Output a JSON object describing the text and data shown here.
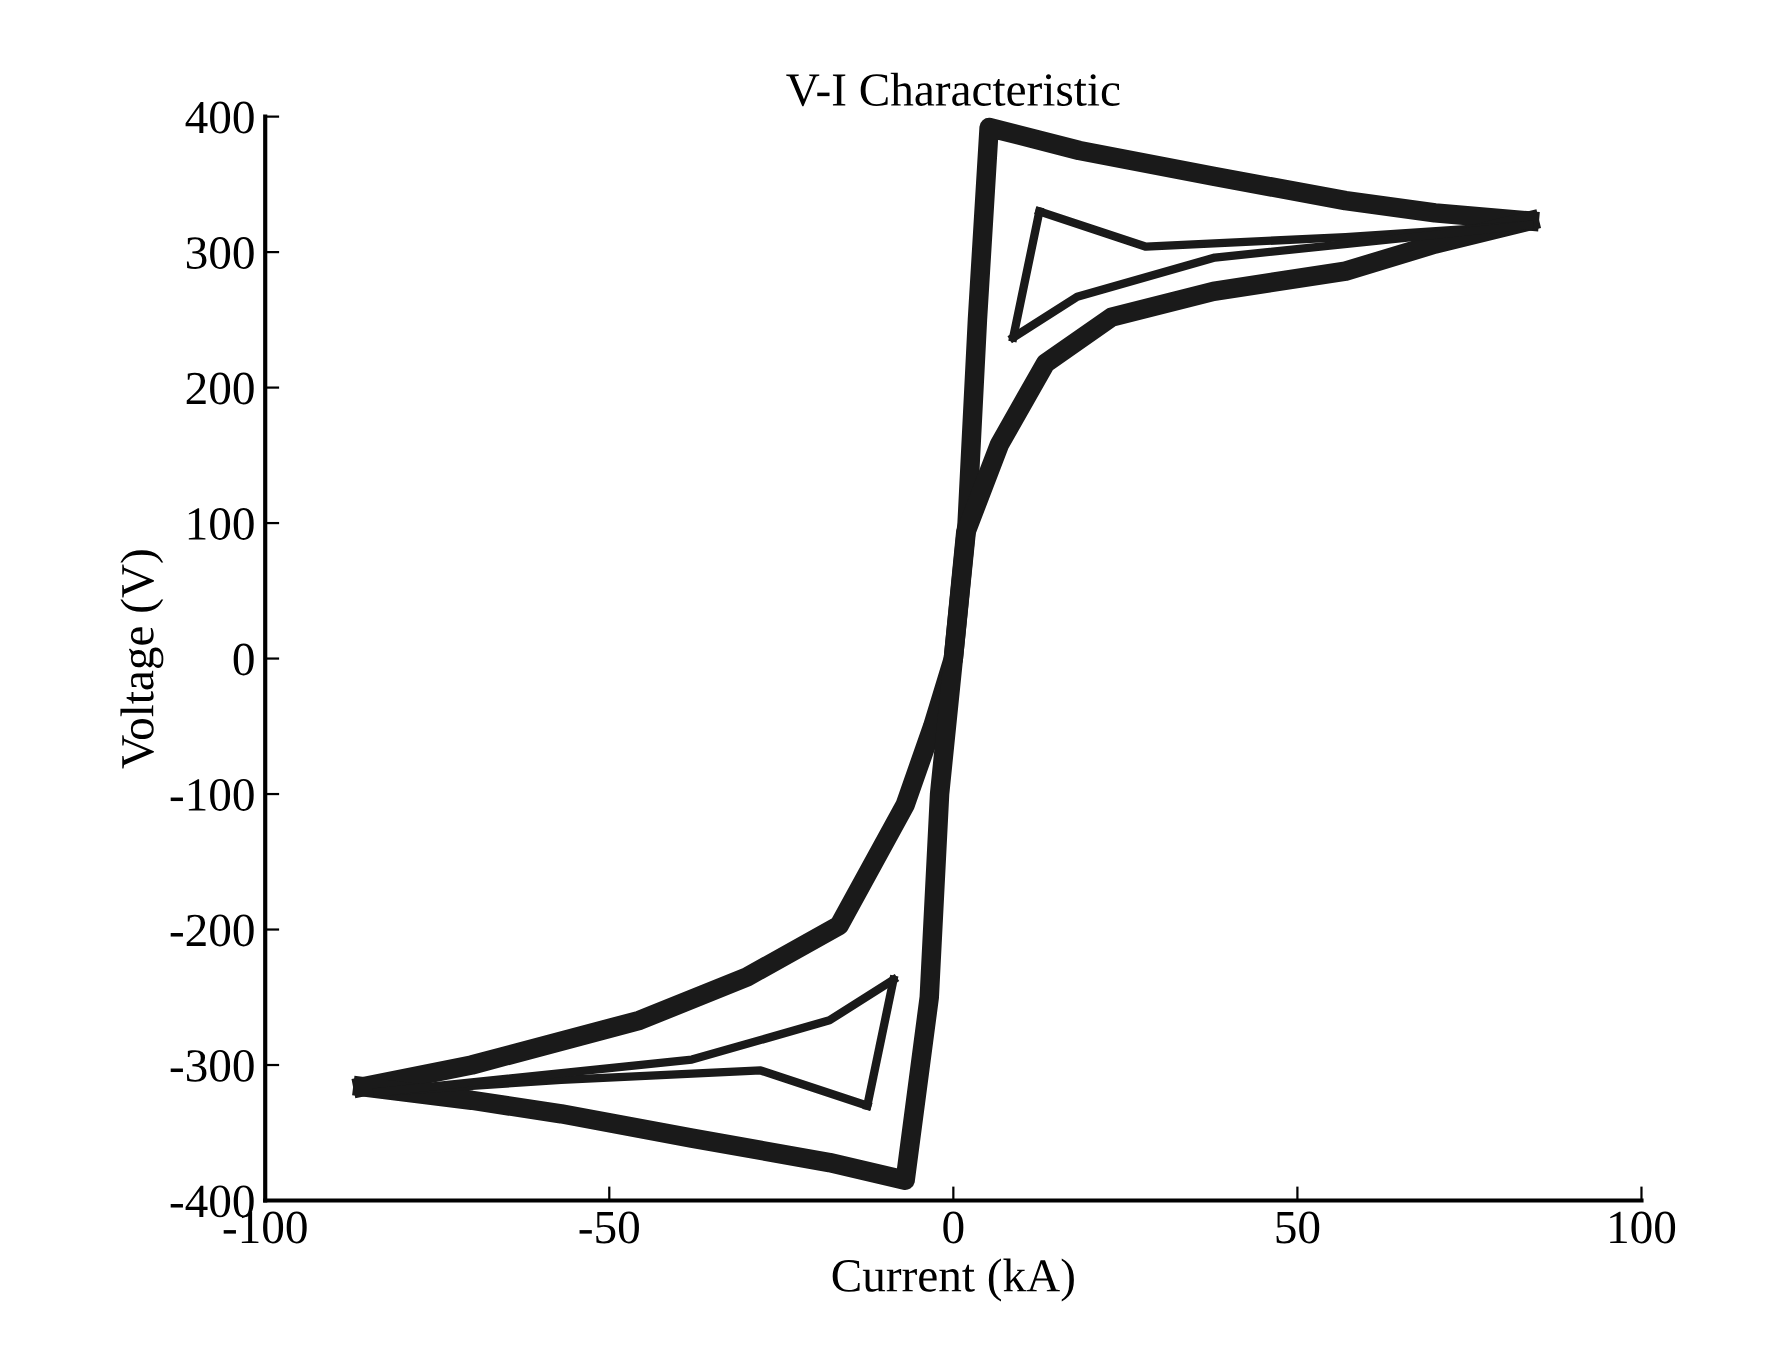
{
  "chart_data": {
    "type": "line",
    "title": "V-I Characteristic",
    "xlabel": "Current (kA)",
    "ylabel": "Voltage (V)",
    "xlim": [
      -100,
      100
    ],
    "xticks": [
      -100,
      -50,
      0,
      50,
      100
    ],
    "ylim": [
      -400,
      400
    ],
    "yticks": [
      -400,
      -300,
      -200,
      -100,
      0,
      100,
      200,
      300,
      400
    ],
    "grid": false,
    "legend": false,
    "marker": "none",
    "line_style": "solid",
    "series": [
      {
        "color": "#1a1a1a",
        "x": [
          -85.8,
          -70,
          -45.6,
          -30,
          -16.6,
          -7,
          -3,
          0,
          2,
          3.5,
          5.2,
          18.3,
          37.8,
          57,
          70,
          83.7
        ],
        "values": [
          -316,
          -300,
          -267,
          -235,
          -197,
          -108,
          -50,
          0,
          100,
          250,
          392,
          375,
          356,
          338,
          329,
          323
        ]
      },
      {
        "color": "#1a1a1a",
        "x": [
          -85.8,
          -70,
          -57,
          -38,
          -18,
          -7,
          -3.5,
          -2,
          0,
          1.8,
          6.7,
          13.4,
          23,
          37.8,
          57,
          70,
          83.7
        ],
        "values": [
          -316,
          -326,
          -336,
          -354,
          -372,
          -385,
          -250,
          -100,
          0,
          93,
          158,
          218,
          252,
          271,
          286,
          306,
          323
        ]
      },
      {
        "color": "#1a1a1a",
        "x": [
          12.5,
          28,
          57,
          83.7
        ],
        "values": [
          330,
          304,
          311,
          320
        ]
      },
      {
        "color": "#1a1a1a",
        "x": [
          8.7,
          12.5
        ],
        "values": [
          237,
          330
        ]
      },
      {
        "color": "#1a1a1a",
        "x": [
          8.7,
          18,
          38,
          83.7
        ],
        "values": [
          237,
          267,
          296,
          320
        ]
      },
      {
        "color": "#1a1a1a",
        "x": [
          -83.7,
          -57,
          -28,
          -12.5
        ],
        "values": [
          -320,
          -311,
          -304,
          -330
        ]
      },
      {
        "color": "#1a1a1a",
        "x": [
          -12.5,
          -8.7
        ],
        "values": [
          -330,
          -237
        ]
      },
      {
        "color": "#1a1a1a",
        "x": [
          -83.7,
          -38,
          -18,
          -8.7
        ],
        "values": [
          -320,
          -296,
          -267,
          -237
        ]
      }
    ]
  }
}
